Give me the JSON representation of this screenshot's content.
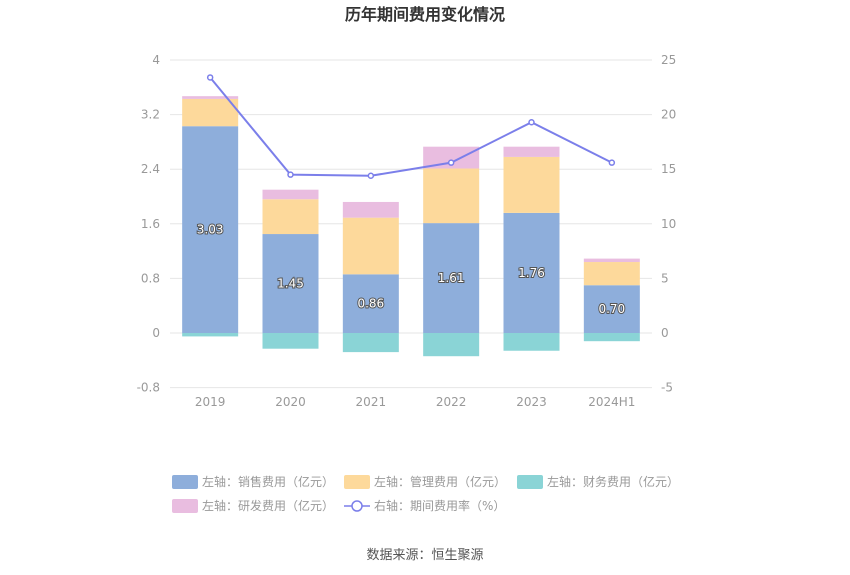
{
  "chart_data": {
    "type": "bar",
    "title": "历年期间费用变化情况",
    "categories": [
      "2019",
      "2020",
      "2021",
      "2022",
      "2023",
      "2024H1"
    ],
    "y_left": {
      "min": -0.8,
      "max": 4,
      "ticks": [
        "-0.8",
        "0",
        "0.8",
        "1.6",
        "2.4",
        "3.2",
        "4"
      ]
    },
    "y_right": {
      "min": -5,
      "max": 25,
      "ticks": [
        "-5",
        "0",
        "5",
        "10",
        "15",
        "20",
        "25"
      ]
    },
    "series": [
      {
        "name": "左轴：销售费用（亿元）",
        "axis": "left",
        "kind": "stacked-bar",
        "color": "#8eaedb",
        "values": [
          3.03,
          1.45,
          0.86,
          1.61,
          1.76,
          0.7
        ],
        "labels": [
          "3.03",
          "1.45",
          "0.86",
          "1.61",
          "1.76",
          "0.70"
        ]
      },
      {
        "name": "左轴：管理费用（亿元）",
        "axis": "left",
        "kind": "stacked-bar",
        "color": "#fdd99b",
        "values": [
          0.4,
          0.51,
          0.83,
          0.8,
          0.82,
          0.34
        ]
      },
      {
        "name": "左轴：财务费用（亿元）",
        "axis": "left",
        "kind": "stacked-bar",
        "color": "#8ad4d6",
        "values": [
          -0.05,
          -0.23,
          -0.28,
          -0.34,
          -0.26,
          -0.12
        ]
      },
      {
        "name": "左轴：研发费用（亿元）",
        "axis": "left",
        "kind": "stacked-bar",
        "color": "#e9bde0",
        "values": [
          0.04,
          0.14,
          0.23,
          0.32,
          0.15,
          0.05
        ]
      },
      {
        "name": "右轴：期间费用率（%）",
        "axis": "right",
        "kind": "line",
        "color": "#7b7fea",
        "values": [
          23.4,
          14.5,
          14.4,
          15.6,
          19.3,
          15.6
        ]
      }
    ],
    "legend_placement": "bottom",
    "grid": true,
    "source": "数据来源：恒生聚源"
  }
}
